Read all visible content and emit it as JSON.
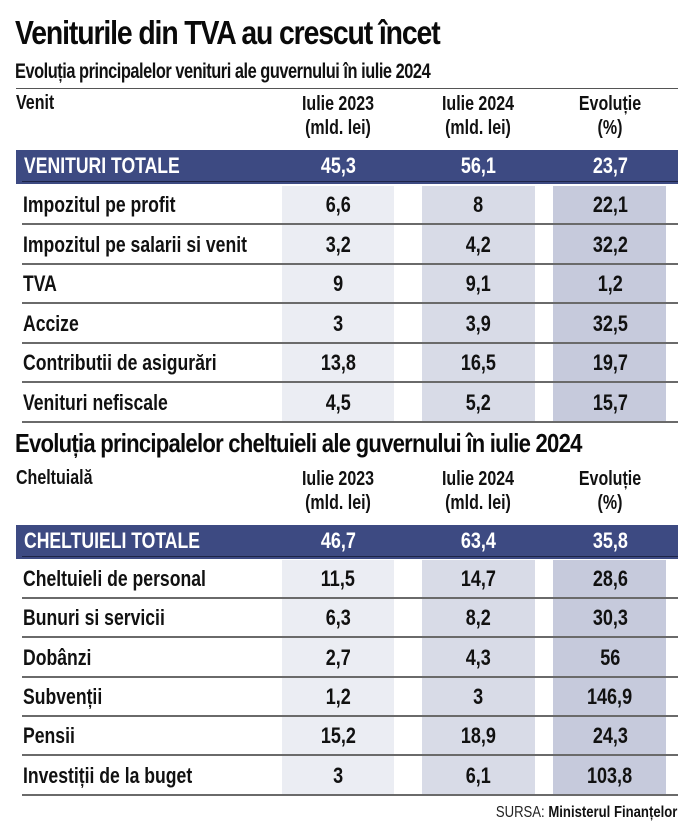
{
  "title": "Veniturile din TVA au crescut încet",
  "revenue": {
    "heading": "Evoluția principalelor venituri ale guvernului în iulie 2024",
    "columns": {
      "label": "Venit",
      "col1_line1": "Iulie 2023",
      "col1_line2": "(mld. lei)",
      "col2_line1": "Iulie 2024",
      "col2_line2": "(mld. lei)",
      "col3_line1": "Evoluție",
      "col3_line2": "(%)"
    },
    "total": {
      "label": "VENITURI TOTALE",
      "jul2023": "45,3",
      "jul2024": "56,1",
      "change": "23,7"
    },
    "rows": [
      {
        "label": "Impozitul pe profit",
        "jul2023": "6,6",
        "jul2024": "8",
        "change": "22,1"
      },
      {
        "label": "Impozitul pe salarii si venit",
        "jul2023": "3,2",
        "jul2024": "4,2",
        "change": "32,2"
      },
      {
        "label": "TVA",
        "jul2023": "9",
        "jul2024": "9,1",
        "change": "1,2"
      },
      {
        "label": "Accize",
        "jul2023": "3",
        "jul2024": "3,9",
        "change": "32,5"
      },
      {
        "label": "Contributii de asigurări",
        "jul2023": "13,8",
        "jul2024": "16,5",
        "change": "19,7"
      },
      {
        "label": "Venituri nefiscale",
        "jul2023": "4,5",
        "jul2024": "5,2",
        "change": "15,7"
      }
    ]
  },
  "expenses": {
    "heading": "Evoluția principalelor cheltuieli ale guvernului în iulie 2024",
    "columns": {
      "label": "Cheltuială",
      "col1_line1": "Iulie 2023",
      "col1_line2": "(mld. lei)",
      "col2_line1": "Iulie 2024",
      "col2_line2": "(mld. lei)",
      "col3_line1": "Evoluție",
      "col3_line2": "(%)"
    },
    "total": {
      "label": "CHELTUIELI TOTALE",
      "jul2023": "46,7",
      "jul2024": "63,4",
      "change": "35,8"
    },
    "rows": [
      {
        "label": "Cheltuieli de personal",
        "jul2023": "11,5",
        "jul2024": "14,7",
        "change": "28,6"
      },
      {
        "label": "Bunuri si servicii",
        "jul2023": "6,3",
        "jul2024": "8,2",
        "change": "30,3"
      },
      {
        "label": "Dobânzi",
        "jul2023": "2,7",
        "jul2024": "4,3",
        "change": "56"
      },
      {
        "label": "Subvenții",
        "jul2023": "1,2",
        "jul2024": "3",
        "change": "146,9"
      },
      {
        "label": "Pensii",
        "jul2023": "15,2",
        "jul2024": "18,9",
        "change": "24,3"
      },
      {
        "label": "Investiții de la buget",
        "jul2023": "3",
        "jul2024": "6,1",
        "change": "103,8"
      }
    ]
  },
  "source": {
    "prefix": "SURSA:",
    "name": "Ministerul Finanțelor"
  },
  "colors": {
    "band": "#3d4a82",
    "col1": "#ebedf3",
    "col2": "#d8dbe7",
    "col3": "#c6cadc"
  }
}
